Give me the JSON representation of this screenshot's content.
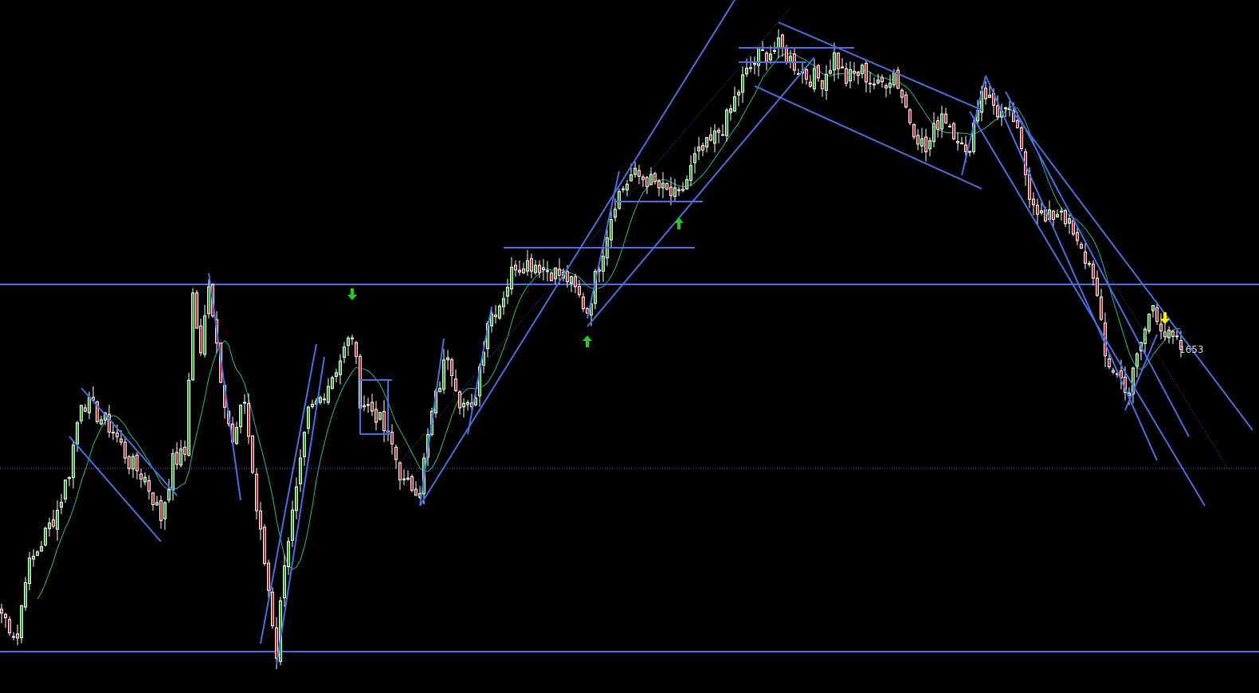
{
  "chart_data": {
    "type": "candlestick",
    "title": "",
    "xlabel": "",
    "ylabel": "",
    "grid": false,
    "bar_count": 297,
    "ylim": [
      1257,
      2092
    ],
    "colors": {
      "background": "#000000",
      "up_fill": "#22b022",
      "down_fill": "#d42424",
      "candle_outline": "#ffffff",
      "trendline": "#4a6fe0",
      "moving_average": "#20b89a",
      "arrow_buy": "#22cc22",
      "arrow_sell": "#ffee00"
    },
    "moving_average_period": 10,
    "close_waypoints": [
      [
        0,
        1322
      ],
      [
        4,
        1292
      ],
      [
        6,
        1372
      ],
      [
        10,
        1412
      ],
      [
        14,
        1452
      ],
      [
        17,
        1502
      ],
      [
        20,
        1592
      ],
      [
        24,
        1572
      ],
      [
        28,
        1552
      ],
      [
        32,
        1512
      ],
      [
        36,
        1492
      ],
      [
        40,
        1442
      ],
      [
        43,
        1512
      ],
      [
        46,
        1522
      ],
      [
        48,
        1722
      ],
      [
        50,
        1642
      ],
      [
        52,
        1742
      ],
      [
        55,
        1622
      ],
      [
        58,
        1532
      ],
      [
        61,
        1592
      ],
      [
        64,
        1452
      ],
      [
        67,
        1352
      ],
      [
        69,
        1272
      ],
      [
        71,
        1392
      ],
      [
        74,
        1472
      ],
      [
        77,
        1572
      ],
      [
        80,
        1592
      ],
      [
        83,
        1622
      ],
      [
        88,
        1672
      ],
      [
        90,
        1592
      ],
      [
        94,
        1572
      ],
      [
        98,
        1532
      ],
      [
        101,
        1482
      ],
      [
        105,
        1482
      ],
      [
        108,
        1572
      ],
      [
        112,
        1652
      ],
      [
        115,
        1592
      ],
      [
        118,
        1572
      ],
      [
        122,
        1692
      ],
      [
        125,
        1712
      ],
      [
        129,
        1762
      ],
      [
        134,
        1762
      ],
      [
        138,
        1752
      ],
      [
        142,
        1742
      ],
      [
        147,
        1702
      ],
      [
        150,
        1762
      ],
      [
        154,
        1842
      ],
      [
        158,
        1872
      ],
      [
        162,
        1867
      ],
      [
        166,
        1852
      ],
      [
        170,
        1842
      ],
      [
        174,
        1892
      ],
      [
        178,
        1912
      ],
      [
        182,
        1942
      ],
      [
        186,
        1992
      ],
      [
        190,
        2022
      ],
      [
        195,
        2032
      ],
      [
        198,
        2017
      ],
      [
        202,
        1997
      ],
      [
        206,
        1992
      ],
      [
        209,
        2022
      ],
      [
        212,
        1992
      ],
      [
        216,
        2002
      ],
      [
        220,
        1982
      ],
      [
        224,
        2002
      ],
      [
        228,
        1942
      ],
      [
        232,
        1902
      ],
      [
        236,
        1952
      ],
      [
        240,
        1922
      ],
      [
        242,
        1892
      ],
      [
        246,
        1982
      ],
      [
        250,
        1952
      ],
      [
        254,
        1942
      ],
      [
        258,
        1852
      ],
      [
        262,
        1812
      ],
      [
        266,
        1832
      ],
      [
        270,
        1782
      ],
      [
        274,
        1752
      ],
      [
        277,
        1642
      ],
      [
        280,
        1622
      ],
      [
        283,
        1602
      ],
      [
        286,
        1662
      ],
      [
        289,
        1712
      ],
      [
        292,
        1672
      ],
      [
        296,
        1653
      ]
    ],
    "horizontal_lines": [
      {
        "price": 1735,
        "style": "solid"
      },
      {
        "price": 1274,
        "style": "solid"
      },
      {
        "price": 1504,
        "style": "dotted"
      }
    ],
    "trendlines": [
      {
        "from": [
          105,
          1457
        ],
        "to": [
          184,
          2092
        ],
        "style": "solid"
      },
      {
        "from": [
          147,
          1682
        ],
        "to": [
          204,
          2020
        ],
        "style": "solid"
      },
      {
        "from": [
          247,
          1997
        ],
        "to": [
          290,
          1514
        ],
        "style": "solid"
      },
      {
        "from": [
          252,
          1977
        ],
        "to": [
          298,
          1544
        ],
        "style": "solid"
      },
      {
        "from": [
          253,
          1957
        ],
        "to": [
          314,
          1552
        ],
        "style": "solid"
      },
      {
        "from": [
          243,
          1952
        ],
        "to": [
          302,
          1457
        ],
        "style": "solid"
      },
      {
        "from": [
          195,
          2064
        ],
        "to": [
          246,
          1954
        ],
        "style": "solid"
      },
      {
        "from": [
          189,
          1984
        ],
        "to": [
          246,
          1855
        ],
        "style": "solid"
      },
      {
        "from": [
          185,
          2032
        ],
        "to": [
          214,
          2032
        ],
        "style": "solid"
      },
      {
        "from": [
          185,
          2014
        ],
        "to": [
          202,
          2014
        ],
        "style": "solid"
      },
      {
        "from": [
          126,
          1781
        ],
        "to": [
          174,
          1781
        ],
        "style": "solid"
      },
      {
        "from": [
          154,
          1839
        ],
        "to": [
          176,
          1839
        ],
        "style": "solid"
      },
      {
        "from": [
          90,
          1615
        ],
        "to": [
          98,
          1615
        ],
        "style": "solid"
      },
      {
        "from": [
          90,
          1547
        ],
        "to": [
          98,
          1547
        ],
        "style": "solid"
      },
      {
        "from": [
          90,
          1615
        ],
        "to": [
          90,
          1547
        ],
        "style": "solid"
      },
      {
        "from": [
          97,
          1615
        ],
        "to": [
          97,
          1547
        ],
        "style": "solid"
      },
      {
        "from": [
          20,
          1605
        ],
        "to": [
          44,
          1470
        ],
        "style": "solid"
      },
      {
        "from": [
          17,
          1544
        ],
        "to": [
          40,
          1412
        ],
        "style": "solid"
      },
      {
        "from": [
          52,
          1749
        ],
        "to": [
          60,
          1464
        ],
        "style": "solid"
      },
      {
        "from": [
          65,
          1284
        ],
        "to": [
          79,
          1660
        ],
        "style": "solid"
      },
      {
        "from": [
          69,
          1257
        ],
        "to": [
          81,
          1644
        ],
        "style": "solid"
      },
      {
        "from": [
          105,
          1457
        ],
        "to": [
          111,
          1667
        ],
        "style": "solid"
      },
      {
        "from": [
          117,
          1547
        ],
        "to": [
          123,
          1707
        ],
        "style": "solid"
      },
      {
        "from": [
          147,
          1692
        ],
        "to": [
          155,
          1877
        ],
        "style": "solid"
      },
      {
        "from": [
          247,
          1997
        ],
        "to": [
          241,
          1872
        ],
        "style": "solid"
      },
      {
        "from": [
          282,
          1577
        ],
        "to": [
          290,
          1672
        ],
        "style": "solid"
      },
      {
        "from": [
          100,
          1512
        ],
        "to": [
          198,
          2082
        ],
        "style": "dotted"
      },
      {
        "from": [
          254,
          1942
        ],
        "to": [
          308,
          1502
        ],
        "style": "dotted"
      }
    ],
    "signals": [
      {
        "bar": 88,
        "price": 1722,
        "direction": "down",
        "color": "#22cc22"
      },
      {
        "bar": 147,
        "price": 1664,
        "direction": "up",
        "color": "#22cc22"
      },
      {
        "bar": 170,
        "price": 1812,
        "direction": "up",
        "color": "#22cc22"
      },
      {
        "bar": 292,
        "price": 1692,
        "direction": "down",
        "color": "#ffee00"
      }
    ],
    "last_price_label": {
      "bar": 296,
      "price": 1653,
      "text": "1653"
    }
  }
}
